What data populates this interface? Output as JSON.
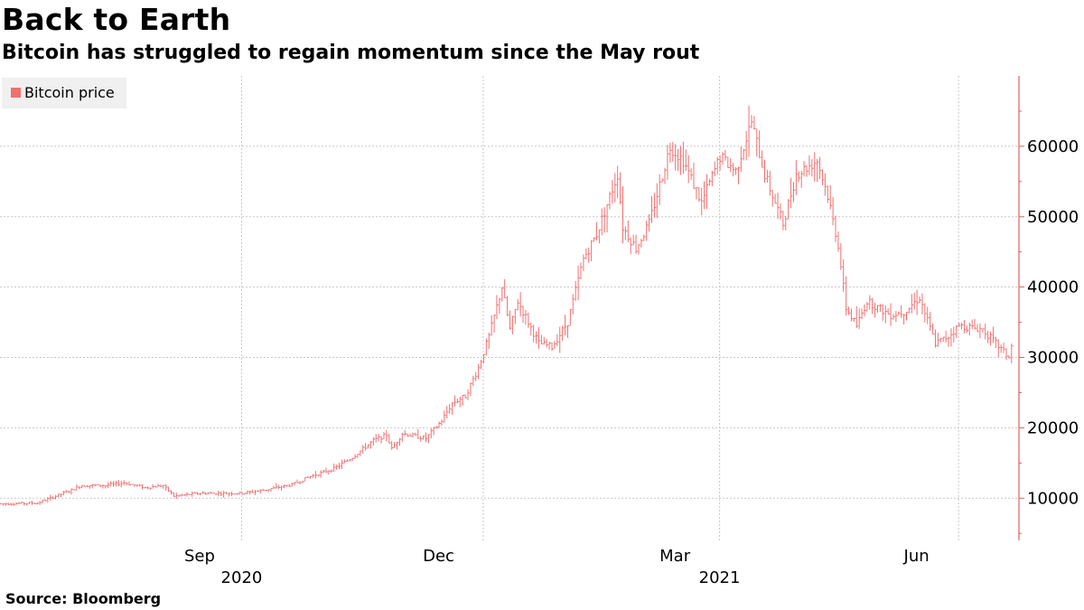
{
  "title": "Back to Earth",
  "subtitle": "Bitcoin has struggled to regain momentum since the May rout",
  "source": "Source:  Bloomberg",
  "colors": {
    "series": "#f07070",
    "grid": "#c8c8c8",
    "axis": "#e06060",
    "legend_bg": "#f0f0f0"
  },
  "chart_data": {
    "type": "line",
    "style": "daily high-low range bars",
    "series": [
      {
        "name": "Bitcoin price",
        "points": [
          [
            "2020-07-01",
            9200
          ],
          [
            "2020-07-15",
            9300
          ],
          [
            "2020-07-27",
            11000
          ],
          [
            "2020-08-01",
            11800
          ],
          [
            "2020-08-10",
            11800
          ],
          [
            "2020-08-17",
            12200
          ],
          [
            "2020-08-25",
            11500
          ],
          [
            "2020-09-01",
            11800
          ],
          [
            "2020-09-05",
            10300
          ],
          [
            "2020-09-15",
            10700
          ],
          [
            "2020-09-25",
            10700
          ],
          [
            "2020-10-01",
            10700
          ],
          [
            "2020-10-10",
            11200
          ],
          [
            "2020-10-20",
            11900
          ],
          [
            "2020-10-27",
            13100
          ],
          [
            "2020-11-05",
            14200
          ],
          [
            "2020-11-12",
            15800
          ],
          [
            "2020-11-20",
            18200
          ],
          [
            "2020-11-25",
            19000
          ],
          [
            "2020-11-27",
            17000
          ],
          [
            "2020-12-01",
            19200
          ],
          [
            "2020-12-10",
            18500
          ],
          [
            "2020-12-16",
            21000
          ],
          [
            "2020-12-20",
            23500
          ],
          [
            "2020-12-25",
            24500
          ],
          [
            "2020-12-30",
            28500
          ],
          [
            "2021-01-03",
            33000
          ],
          [
            "2021-01-08",
            40000
          ],
          [
            "2021-01-11",
            34000
          ],
          [
            "2021-01-14",
            38000
          ],
          [
            "2021-01-22",
            32000
          ],
          [
            "2021-01-27",
            31500
          ],
          [
            "2021-02-02",
            35000
          ],
          [
            "2021-02-08",
            44000
          ],
          [
            "2021-02-13",
            47500
          ],
          [
            "2021-02-21",
            56000
          ],
          [
            "2021-02-23",
            48500
          ],
          [
            "2021-02-28",
            45500
          ],
          [
            "2021-03-05",
            49000
          ],
          [
            "2021-03-13",
            60000
          ],
          [
            "2021-03-18",
            58000
          ],
          [
            "2021-03-25",
            52000
          ],
          [
            "2021-04-01",
            58500
          ],
          [
            "2021-04-07",
            56500
          ],
          [
            "2021-04-13",
            63500
          ],
          [
            "2021-04-18",
            56000
          ],
          [
            "2021-04-25",
            49000
          ],
          [
            "2021-04-30",
            56000
          ],
          [
            "2021-05-08",
            58000
          ],
          [
            "2021-05-12",
            53000
          ],
          [
            "2021-05-16",
            46000
          ],
          [
            "2021-05-19",
            37000
          ],
          [
            "2021-05-23",
            34500
          ],
          [
            "2021-05-27",
            38000
          ],
          [
            "2021-06-05",
            36000
          ],
          [
            "2021-06-10",
            36500
          ],
          [
            "2021-06-16",
            38500
          ],
          [
            "2021-06-22",
            32000
          ],
          [
            "2021-06-27",
            33000
          ],
          [
            "2021-07-01",
            34500
          ],
          [
            "2021-07-10",
            34000
          ],
          [
            "2021-07-15",
            32000
          ],
          [
            "2021-07-20",
            30000
          ],
          [
            "2021-07-21",
            31500
          ]
        ]
      }
    ],
    "x_axis": {
      "month_labels": [
        {
          "label": "Sep",
          "date": "2020-09-15"
        },
        {
          "label": "Dec",
          "date": "2020-12-15"
        },
        {
          "label": "Mar",
          "date": "2021-03-15"
        },
        {
          "label": "Jun",
          "date": "2021-06-15"
        }
      ],
      "year_labels": [
        {
          "label": "2020",
          "date": "2020-10-01"
        },
        {
          "label": "2021",
          "date": "2021-04-01"
        }
      ],
      "gridlines": [
        "2020-10-01",
        "2021-01-01",
        "2021-04-01",
        "2021-07-01"
      ],
      "range": [
        "2020-07-01",
        "2021-07-24"
      ]
    },
    "y_axis": {
      "position": "right",
      "ticks": [
        10000,
        20000,
        30000,
        40000,
        50000,
        60000
      ],
      "range": [
        4000,
        70000
      ]
    },
    "grid": true,
    "legend": "top-left"
  }
}
